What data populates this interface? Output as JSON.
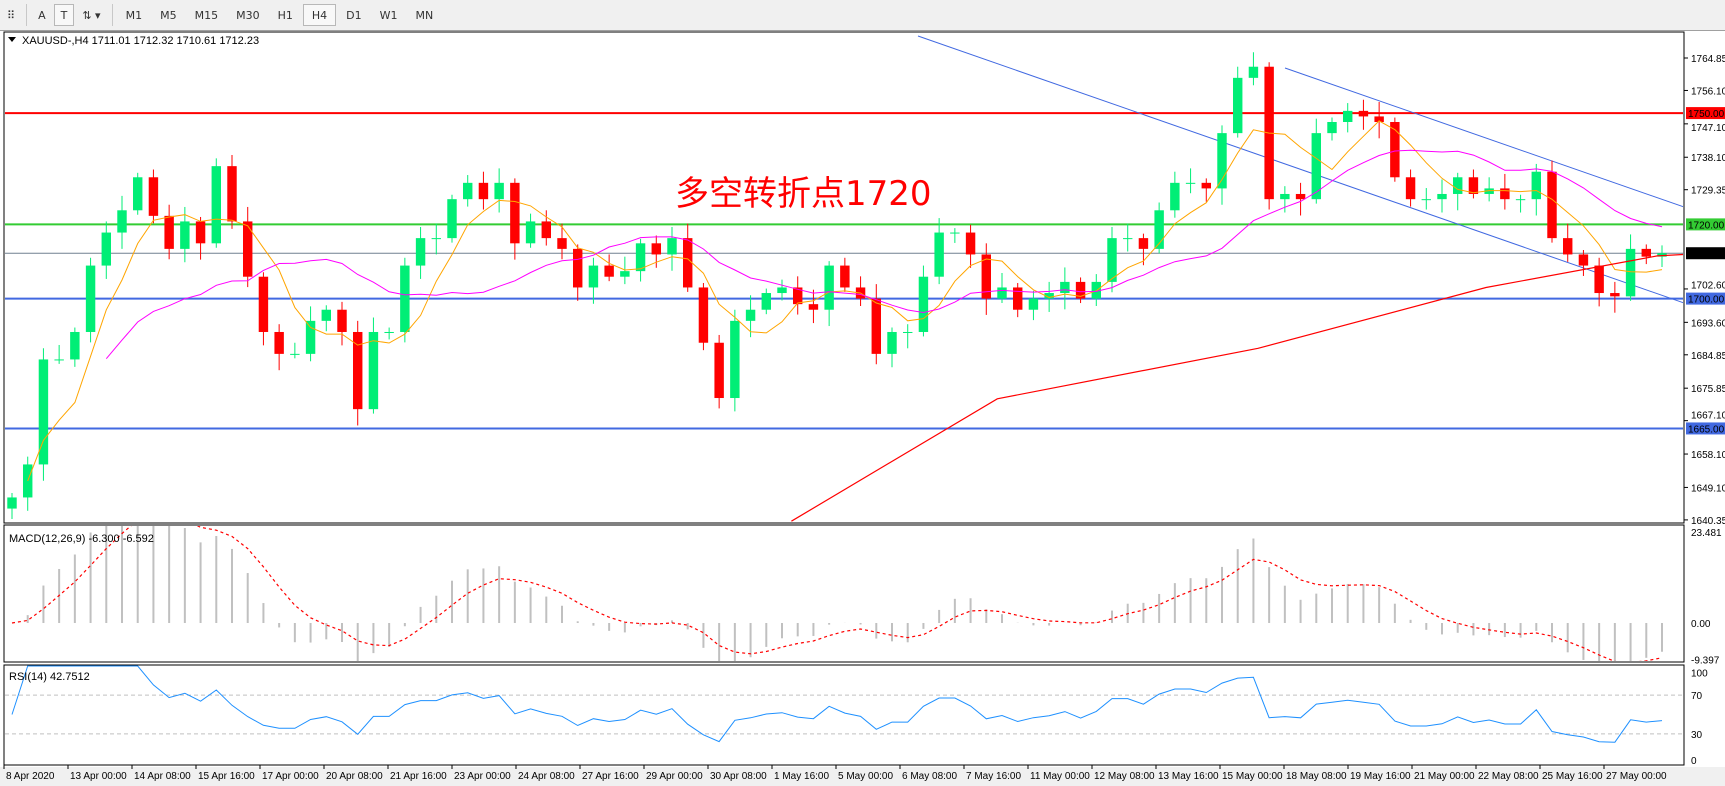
{
  "toolbar": {
    "tools": [
      {
        "name": "grid-tool-icon",
        "label": "⠿"
      },
      {
        "name": "text-tool-button",
        "label": "A"
      },
      {
        "name": "text-label-tool-button",
        "label": "T"
      },
      {
        "name": "arrows-tool-button",
        "label": "⇅ ▾"
      }
    ],
    "timeframes": [
      "M1",
      "M5",
      "M15",
      "M30",
      "H1",
      "H4",
      "D1",
      "W1",
      "MN"
    ],
    "selected_timeframe": "H4"
  },
  "chart_data": {
    "type": "candlestick",
    "symbol_header": "XAUUSD-,H4  1711.01 1712.32 1710.61 1712.23",
    "annotation": "多空转折点1720",
    "y_ticks": [
      "1764.85",
      "1756.10",
      "1747.10",
      "1738.10",
      "1729.35",
      "1702.60",
      "1693.60",
      "1684.85",
      "1675.85",
      "1667.10",
      "1658.10",
      "1649.10",
      "1640.35"
    ],
    "ylim": [
      1640.35,
      1764.85
    ],
    "x_ticks": [
      "8 Apr 2020",
      "13 Apr 00:00",
      "14 Apr 08:00",
      "15 Apr 16:00",
      "17 Apr 00:00",
      "20 Apr 08:00",
      "21 Apr 16:00",
      "23 Apr 00:00",
      "24 Apr 08:00",
      "27 Apr 16:00",
      "29 Apr 00:00",
      "30 Apr 08:00",
      "1 May 16:00",
      "5 May 00:00",
      "6 May 08:00",
      "7 May 16:00",
      "11 May 00:00",
      "12 May 08:00",
      "13 May 16:00",
      "15 May 00:00",
      "18 May 08:00",
      "19 May 16:00",
      "21 May 00:00",
      "22 May 08:00",
      "25 May 16:00",
      "27 May 00:00"
    ],
    "closes": [
      1646.4,
      1655.3,
      1683.6,
      1683.6,
      1691.0,
      1708.9,
      1717.8,
      1723.8,
      1732.7,
      1722.3,
      1713.4,
      1720.8,
      1714.9,
      1735.7,
      1720.8,
      1705.9,
      1691.0,
      1685.1,
      1685.1,
      1694.0,
      1697.0,
      1691.0,
      1670.2,
      1691.0,
      1691.0,
      1708.9,
      1716.3,
      1716.3,
      1726.8,
      1731.2,
      1726.8,
      1731.2,
      1714.9,
      1720.8,
      1716.3,
      1713.4,
      1703.0,
      1708.9,
      1705.9,
      1707.4,
      1714.9,
      1711.9,
      1716.3,
      1703.0,
      1688.1,
      1673.2,
      1694.0,
      1697.0,
      1701.5,
      1703.0,
      1698.5,
      1697.0,
      1708.9,
      1703.0,
      1700.0,
      1685.1,
      1691.0,
      1691.0,
      1705.9,
      1717.8,
      1717.8,
      1711.9,
      1700.0,
      1703.0,
      1697.0,
      1700.0,
      1701.5,
      1704.5,
      1700.0,
      1704.5,
      1716.3,
      1716.3,
      1713.4,
      1723.8,
      1731.2,
      1731.2,
      1729.7,
      1744.6,
      1759.5,
      1762.5,
      1726.8,
      1728.2,
      1726.8,
      1744.6,
      1747.6,
      1750.6,
      1749.1,
      1747.6,
      1732.7,
      1726.8,
      1726.8,
      1728.2,
      1732.7,
      1728.2,
      1729.7,
      1726.8,
      1726.8,
      1734.2,
      1716.3,
      1711.9,
      1708.9,
      1701.5,
      1700.6,
      1713.4,
      1711.3,
      1712.23
    ],
    "slow_ma_points": [
      [
        49.6,
        1640.0
      ],
      [
        62.7,
        1673.0
      ],
      [
        79.3,
        1686.6
      ],
      [
        93.8,
        1703.0
      ],
      [
        104.7,
        1711.5
      ],
      [
        109,
        1712.5
      ]
    ],
    "levels": [
      {
        "price": "1750.00",
        "color": "#ff0000"
      },
      {
        "price": "1720.00",
        "color": "#33cc33"
      },
      {
        "price": "1700.00",
        "color": "#4169e1"
      },
      {
        "price": "1665.00",
        "color": "#4169e1"
      }
    ],
    "current_price": "1712.23",
    "colors": {
      "bull": "#00ee76",
      "bear": "#ff0000",
      "ma_fast": "#ffa500",
      "ma_mid": "#ff00ff",
      "ma_slow": "#ff0000",
      "trendline": "#4169e1",
      "rsi": "#1e90ff",
      "macd_hist": "#c0c0c0",
      "macd_signal": "#ff0000"
    },
    "macd": {
      "label": "MACD(12,26,9) -6.300 -6.592",
      "ticks": [
        "23.481",
        "0.00",
        "-9.397"
      ]
    },
    "rsi": {
      "label": "RSI(14) 42.7512",
      "ticks": [
        "100",
        "70",
        "30",
        "0"
      ]
    }
  }
}
